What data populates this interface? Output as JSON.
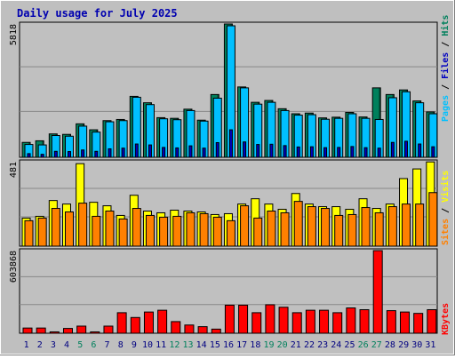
{
  "chart_data": [
    {
      "type": "bar",
      "title": "Daily usage for July 2025",
      "categories": [
        "1",
        "2",
        "3",
        "4",
        "5",
        "6",
        "7",
        "8",
        "9",
        "10",
        "11",
        "12",
        "13",
        "14",
        "15",
        "16",
        "17",
        "18",
        "19",
        "20",
        "21",
        "22",
        "23",
        "24",
        "25",
        "26",
        "27",
        "28",
        "29",
        "30",
        "31"
      ],
      "weekend_days": [
        "5",
        "6",
        "12",
        "13",
        "19",
        "20",
        "26",
        "27"
      ],
      "y_tick_label": "5818",
      "ylim": [
        0,
        5818
      ],
      "grid": true,
      "series": [
        {
          "name": "Hits",
          "values": [
            650,
            720,
            1020,
            1000,
            1460,
            1200,
            1600,
            1650,
            2660,
            2380,
            1730,
            1700,
            2100,
            1620,
            2740,
            5818,
            3070,
            2400,
            2480,
            2120,
            1900,
            1930,
            1720,
            1750,
            1960,
            1760,
            3030,
            2740,
            2940,
            2460,
            1980
          ]
        },
        {
          "name": "Files",
          "values": [
            560,
            540,
            950,
            920,
            1360,
            1100,
            1550,
            1600,
            2620,
            2300,
            1680,
            1640,
            2040,
            1580,
            2580,
            5740,
            3030,
            2320,
            2400,
            2040,
            1840,
            1860,
            1660,
            1700,
            1900,
            1700,
            1650,
            2600,
            2860,
            2380,
            1900
          ]
        },
        {
          "name": "Pages",
          "values": [
            160,
            130,
            260,
            250,
            320,
            260,
            370,
            400,
            580,
            540,
            430,
            410,
            500,
            400,
            640,
            1200,
            670,
            560,
            570,
            510,
            450,
            460,
            420,
            430,
            470,
            420,
            400,
            650,
            700,
            580,
            460
          ]
        }
      ],
      "legend": [
        "Pages",
        "Files",
        "Hits"
      ],
      "legend_placement": "right"
    },
    {
      "type": "bar",
      "categories": [
        "1",
        "2",
        "3",
        "4",
        "5",
        "6",
        "7",
        "8",
        "9",
        "10",
        "11",
        "12",
        "13",
        "14",
        "15",
        "16",
        "17",
        "18",
        "19",
        "20",
        "21",
        "22",
        "23",
        "24",
        "25",
        "26",
        "27",
        "28",
        "29",
        "30",
        "31"
      ],
      "y_tick_label": "481",
      "ylim": [
        0,
        481
      ],
      "grid": true,
      "series": [
        {
          "name": "Visits",
          "values": [
            160,
            170,
            260,
            240,
            470,
            250,
            230,
            175,
            290,
            200,
            190,
            205,
            200,
            195,
            180,
            185,
            240,
            270,
            240,
            210,
            300,
            240,
            225,
            225,
            210,
            270,
            215,
            240,
            385,
            440,
            480
          ]
        },
        {
          "name": "Sites",
          "values": [
            145,
            160,
            215,
            195,
            245,
            170,
            200,
            155,
            215,
            175,
            165,
            170,
            190,
            185,
            165,
            145,
            230,
            160,
            200,
            190,
            255,
            225,
            215,
            175,
            180,
            220,
            190,
            225,
            240,
            240,
            305
          ]
        }
      ],
      "legend": [
        "Sites",
        "Visits"
      ],
      "legend_placement": "right"
    },
    {
      "type": "bar",
      "categories": [
        "1",
        "2",
        "3",
        "4",
        "5",
        "6",
        "7",
        "8",
        "9",
        "10",
        "11",
        "12",
        "13",
        "14",
        "15",
        "16",
        "17",
        "18",
        "19",
        "20",
        "21",
        "22",
        "23",
        "24",
        "25",
        "26",
        "27",
        "28",
        "29",
        "30",
        "31"
      ],
      "y_tick_label": "603868",
      "ylim": [
        0,
        603868
      ],
      "grid": true,
      "series": [
        {
          "name": "KBytes",
          "values": [
            38000,
            38000,
            10000,
            35000,
            52000,
            10000,
            52000,
            150000,
            115000,
            155000,
            168000,
            85000,
            60000,
            48000,
            30000,
            205000,
            205000,
            150000,
            208000,
            190000,
            150000,
            168000,
            168000,
            150000,
            185000,
            172000,
            603868,
            165000,
            155000,
            145000,
            172000
          ]
        }
      ],
      "legend": [
        "KBytes"
      ],
      "legend_placement": "right"
    }
  ],
  "colors": {
    "title": "#0000b0",
    "background": "#bfbfbf",
    "plot": "#c0c0c0",
    "hits": "#00805c",
    "files": "#00c0ff",
    "pages": "#0000c0",
    "visits": "#ffff00",
    "sites": "#ff8000",
    "kbytes": "#ff0000",
    "weekend": "#00805c",
    "weekday": "#000080"
  }
}
